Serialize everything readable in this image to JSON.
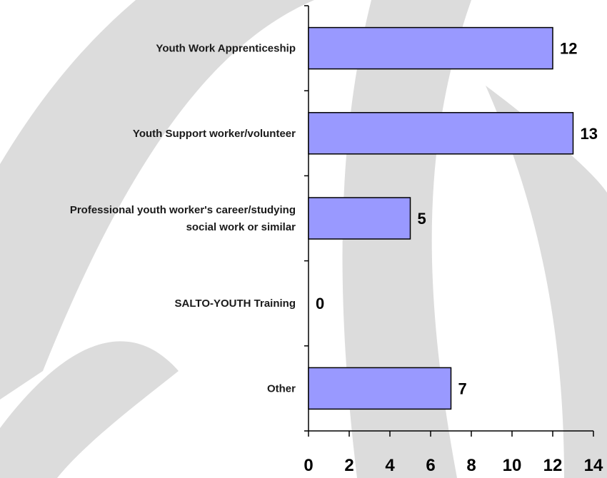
{
  "chart_data": {
    "type": "bar",
    "orientation": "horizontal",
    "categories": [
      "Youth Work Apprenticeship",
      "Youth Support worker/volunteer",
      "Professional youth worker's career/studying social work or similar",
      "SALTO-YOUTH Training",
      "Other"
    ],
    "category_lines": [
      [
        "Youth Work Apprenticeship"
      ],
      [
        "Youth Support worker/volunteer"
      ],
      [
        "Professional youth worker's career/studying",
        "social work or similar"
      ],
      [
        "SALTO-YOUTH Training"
      ],
      [
        "Other"
      ]
    ],
    "values": [
      12,
      13,
      5,
      0,
      7
    ],
    "xlim": [
      0,
      14
    ],
    "xticks": [
      0,
      2,
      4,
      6,
      8,
      10,
      12,
      14
    ],
    "title": "",
    "xlabel": "",
    "ylabel": "",
    "grid": false,
    "legend": "none",
    "bar_color": "#9999ff",
    "bar_edge_color": "#000000",
    "background_shape_color": "#d9d9d9"
  }
}
